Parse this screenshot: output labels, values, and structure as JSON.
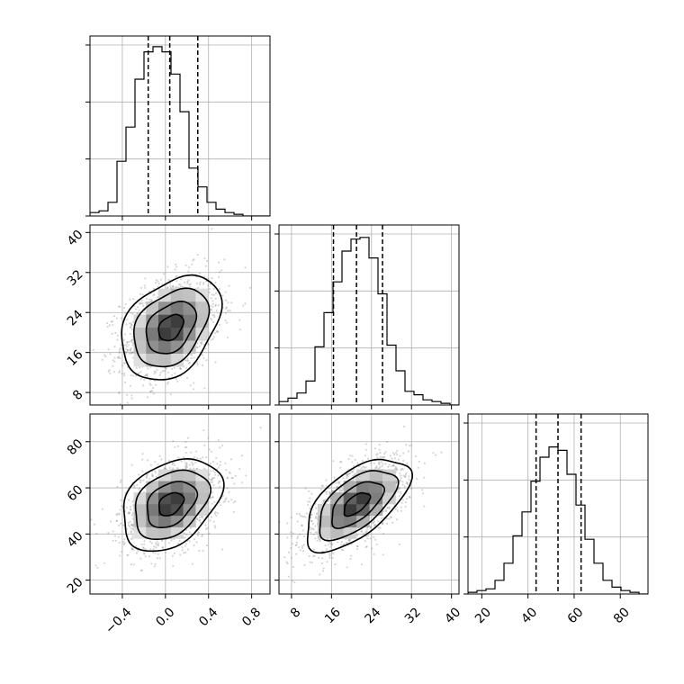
{
  "chart_data": {
    "type": "corner",
    "parameters": [
      {
        "ticks": [
          -0.4,
          0.0,
          0.4,
          0.8
        ],
        "tick_labels": [
          "−0.4",
          "0.0",
          "0.4",
          "0.8"
        ],
        "range": [
          -0.7,
          0.97
        ],
        "quantiles": [
          -0.16,
          0.04,
          0.3
        ]
      },
      {
        "ticks": [
          8,
          16,
          24,
          32,
          40
        ],
        "tick_labels": [
          "8",
          "16",
          "24",
          "32",
          "40"
        ],
        "range": [
          5.5,
          41.5
        ],
        "quantiles": [
          16.4,
          21.0,
          26.2
        ]
      },
      {
        "ticks": [
          20,
          40,
          60,
          80
        ],
        "tick_labels": [
          "20",
          "40",
          "60",
          "80"
        ],
        "range": [
          14,
          92
        ],
        "quantiles": [
          43.5,
          53.0,
          63.0
        ]
      }
    ],
    "histograms": [
      {
        "edges_start": -0.7,
        "bin_width": 0.0835,
        "counts": [
          2,
          3,
          8,
          32,
          52,
          80,
          96,
          99,
          96,
          83,
          61,
          28,
          17,
          8,
          4,
          2,
          1,
          0,
          0,
          0
        ]
      },
      {
        "edges_start": 5.5,
        "bin_width": 1.8,
        "counts": [
          2,
          4,
          7,
          14,
          34,
          54,
          72,
          90,
          97,
          98,
          86,
          65,
          35,
          20,
          8,
          6,
          3,
          2,
          1,
          0
        ]
      },
      {
        "edges_start": 14,
        "bin_width": 3.9,
        "counts": [
          1,
          2,
          3,
          8,
          18,
          34,
          48,
          66,
          80,
          86,
          84,
          70,
          52,
          32,
          18,
          8,
          4,
          2,
          1,
          0
        ]
      }
    ],
    "hist_max": 100,
    "contour_panels": [
      {
        "row": 1,
        "col": 0,
        "x": 0,
        "y": 1,
        "mean": [
          0.05,
          21.0
        ],
        "sigma": [
          0.23,
          5.2
        ],
        "rho": 0.35
      },
      {
        "row": 2,
        "col": 0,
        "x": 0,
        "y": 2,
        "mean": [
          0.05,
          53.0
        ],
        "sigma": [
          0.23,
          10.0
        ],
        "rho": 0.35
      },
      {
        "row": 2,
        "col": 1,
        "x": 1,
        "y": 2,
        "mean": [
          21.0,
          53.0
        ],
        "sigma": [
          5.2,
          10.0
        ],
        "rho": 0.6
      }
    ],
    "contour_levels": [
      0.5,
      1.0,
      1.5,
      2.0
    ],
    "grid": true,
    "legend": "none",
    "title": "",
    "xlabel": "",
    "ylabel": ""
  }
}
